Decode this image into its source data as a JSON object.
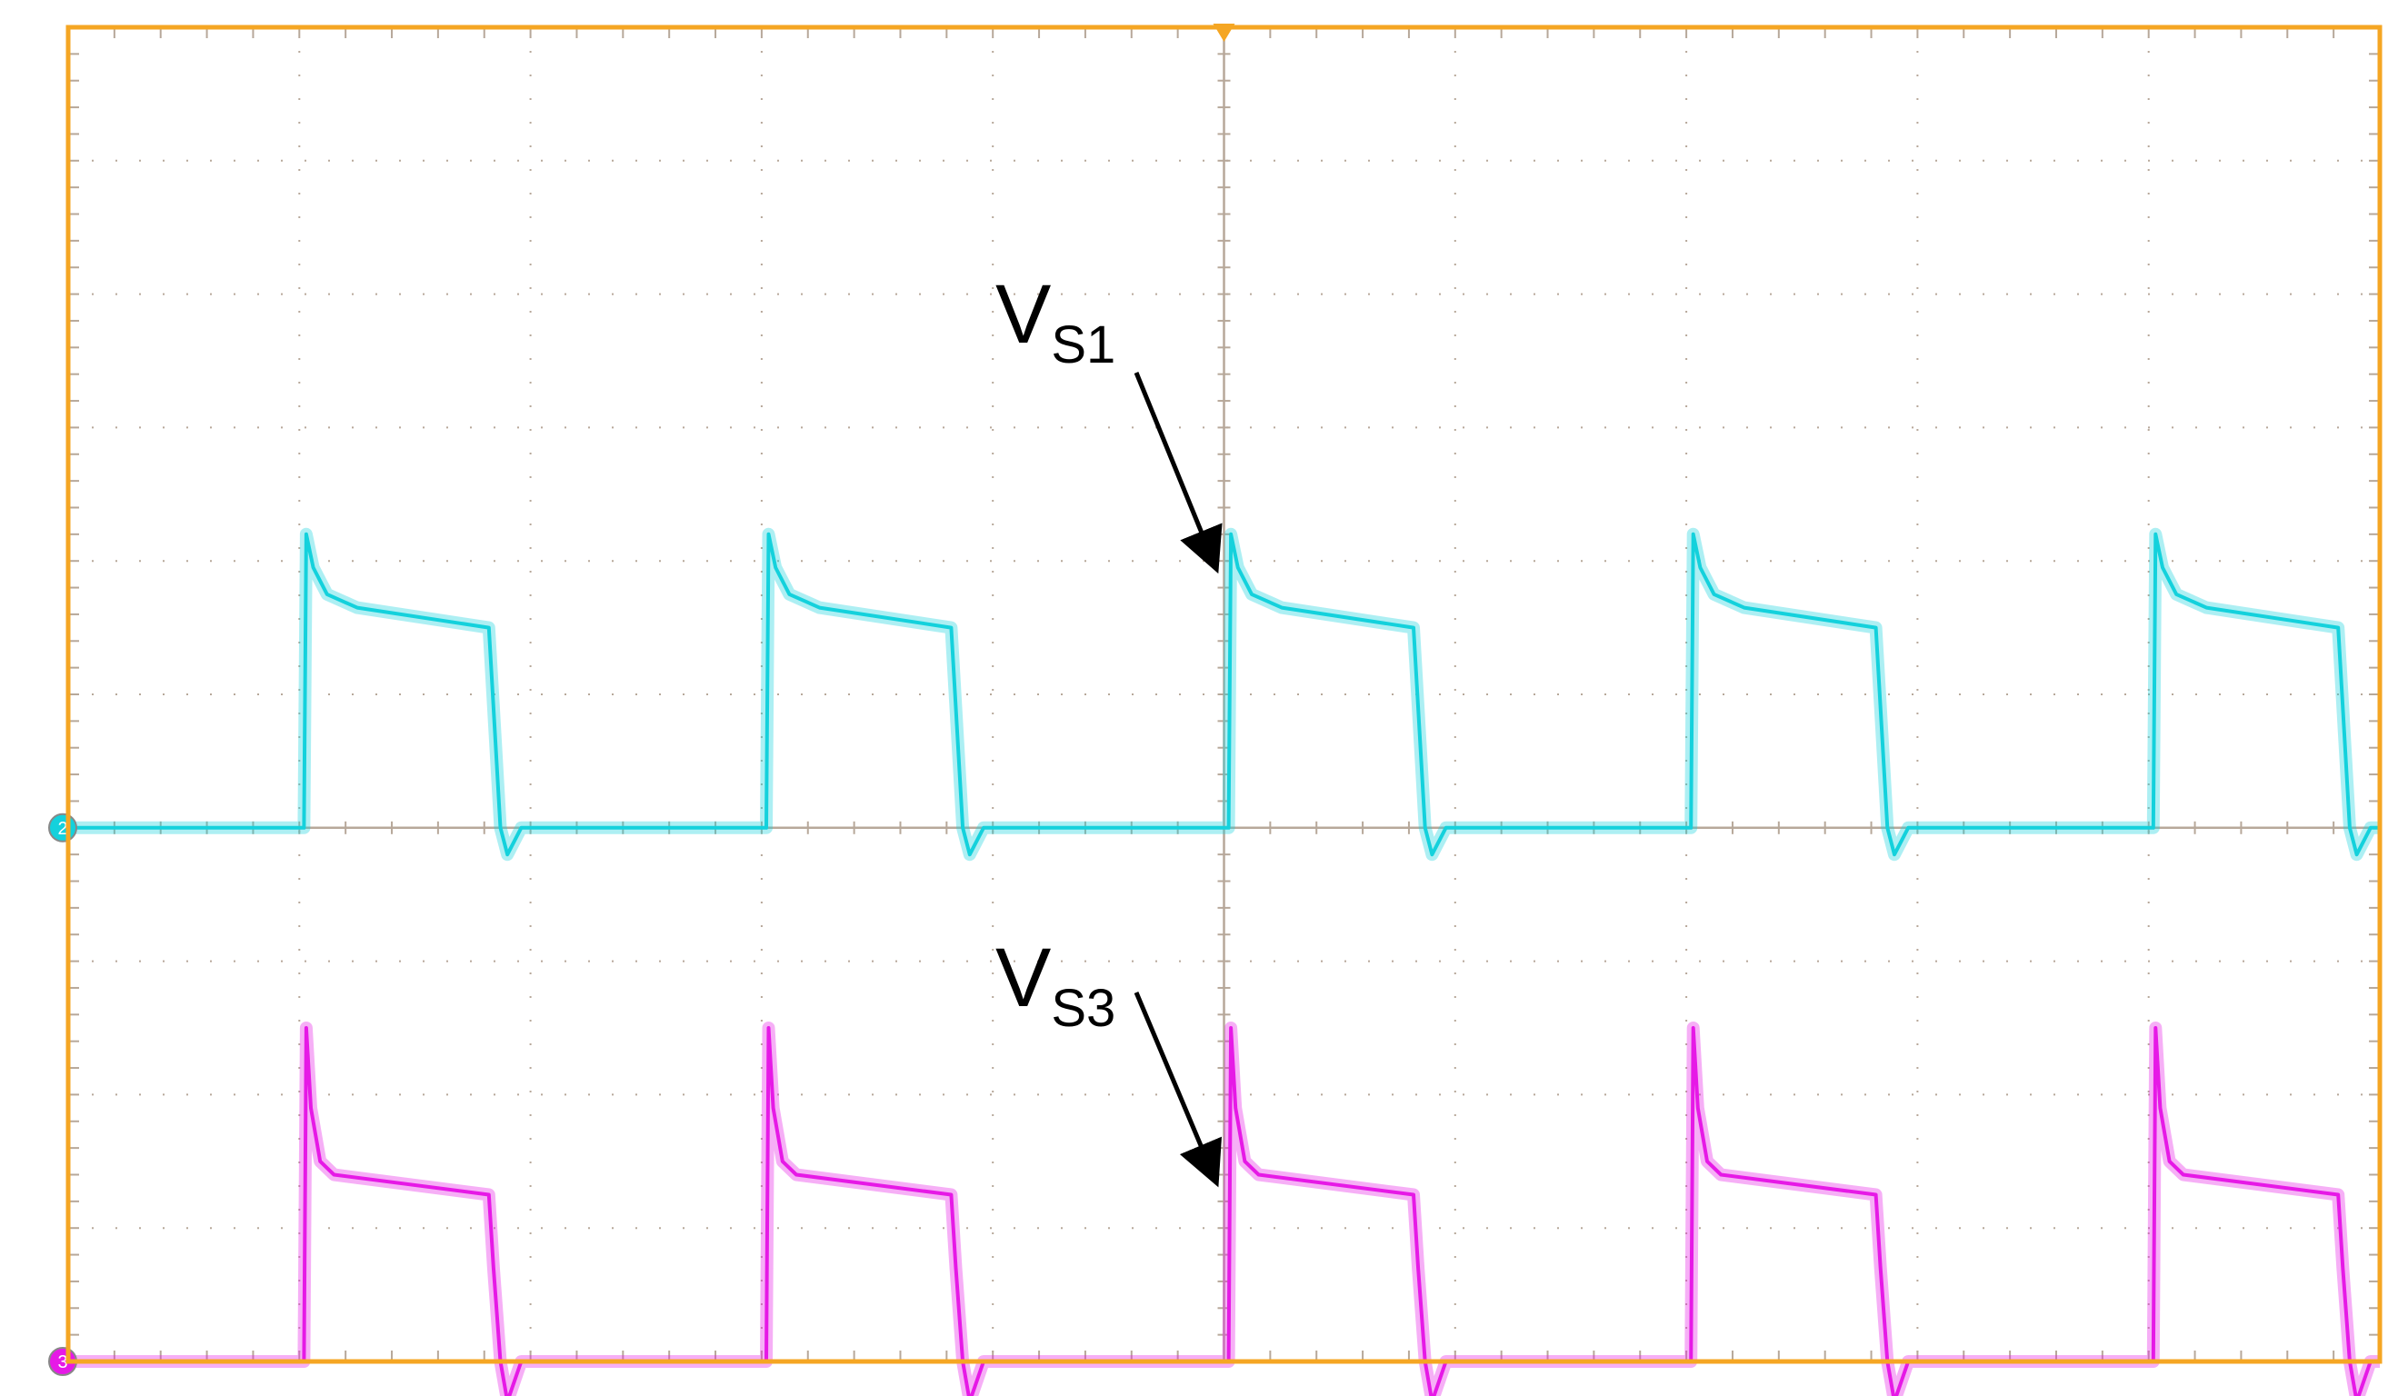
{
  "colors": {
    "frame": "#F5A623",
    "grid": "#B7A89A",
    "ch2": "#14D1DC",
    "ch3": "#E619E6",
    "background": "#FFFFFF"
  },
  "chart_data": {
    "type": "line",
    "title": "",
    "xlabel": "",
    "ylabel": "",
    "grid": true,
    "xlim": [
      0,
      10
    ],
    "ylim": [
      -4,
      6
    ],
    "divisions": {
      "x": 10,
      "y": 10
    },
    "series": [
      {
        "name": "V",
        "subscript": "S1",
        "channel_marker": "2",
        "color_key": "ch2",
        "baseline": 0,
        "x": [
          0,
          1.02,
          1.03,
          1.06,
          1.12,
          1.25,
          1.82,
          1.84,
          1.87,
          1.9,
          1.96,
          3.02,
          3.03,
          3.06,
          3.12,
          3.25,
          3.82,
          3.84,
          3.87,
          3.9,
          3.96,
          5.02,
          5.03,
          5.06,
          5.12,
          5.25,
          5.82,
          5.84,
          5.87,
          5.9,
          5.96,
          7.02,
          7.03,
          7.06,
          7.12,
          7.25,
          7.82,
          7.84,
          7.87,
          7.9,
          7.96,
          9.02,
          9.03,
          9.06,
          9.12,
          9.25,
          9.82,
          9.84,
          9.87,
          9.9,
          9.96,
          10.0
        ],
        "y": [
          0,
          0,
          2.2,
          1.95,
          1.75,
          1.65,
          1.5,
          0.9,
          0,
          -0.2,
          0,
          0,
          2.2,
          1.95,
          1.75,
          1.65,
          1.5,
          0.9,
          0,
          -0.2,
          0,
          0,
          2.2,
          1.95,
          1.75,
          1.65,
          1.5,
          0.9,
          0,
          -0.2,
          0,
          0,
          2.2,
          1.95,
          1.75,
          1.65,
          1.5,
          0.9,
          0,
          -0.2,
          0,
          0,
          2.2,
          1.95,
          1.75,
          1.65,
          1.5,
          0.9,
          0,
          -0.2,
          0,
          0
        ]
      },
      {
        "name": "V",
        "subscript": "S3",
        "channel_marker": "3",
        "color_key": "ch3",
        "baseline": -4,
        "x": [
          0,
          1.02,
          1.03,
          1.05,
          1.09,
          1.15,
          1.82,
          1.84,
          1.87,
          1.9,
          1.96,
          3.02,
          3.03,
          3.05,
          3.09,
          3.15,
          3.82,
          3.84,
          3.87,
          3.9,
          3.96,
          5.02,
          5.03,
          5.05,
          5.09,
          5.15,
          5.82,
          5.84,
          5.87,
          5.9,
          5.96,
          7.02,
          7.03,
          7.05,
          7.09,
          7.15,
          7.82,
          7.84,
          7.87,
          7.9,
          7.96,
          9.02,
          9.03,
          9.05,
          9.09,
          9.15,
          9.82,
          9.84,
          9.87,
          9.9,
          9.96,
          10.0
        ],
        "y": [
          -4,
          -4,
          -1.5,
          -2.1,
          -2.5,
          -2.6,
          -2.75,
          -3.3,
          -4,
          -4.3,
          -4,
          -4,
          -1.5,
          -2.1,
          -2.5,
          -2.6,
          -2.75,
          -3.3,
          -4,
          -4.3,
          -4,
          -4,
          -1.5,
          -2.1,
          -2.5,
          -2.6,
          -2.75,
          -3.3,
          -4,
          -4.3,
          -4,
          -4,
          -1.5,
          -2.1,
          -2.5,
          -2.6,
          -2.75,
          -3.3,
          -4,
          -4.3,
          -4,
          -4,
          -1.5,
          -2.1,
          -2.5,
          -2.6,
          -2.75,
          -3.3,
          -4,
          -4.3,
          -4,
          -4
        ]
      }
    ],
    "annotations": [
      {
        "name": "V",
        "subscript": "S1",
        "target_x": 5.0,
        "target_y": 1.9
      },
      {
        "name": "V",
        "subscript": "S3",
        "target_x": 5.0,
        "target_y": -2.7
      }
    ]
  }
}
